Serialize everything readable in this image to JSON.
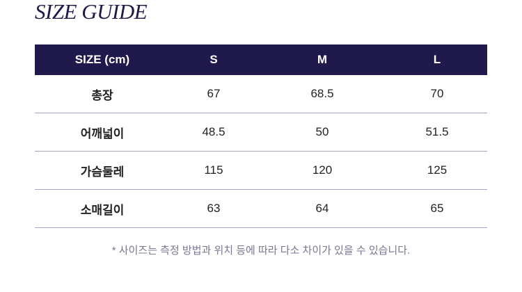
{
  "title": "SIZE GUIDE",
  "table": {
    "headers": [
      "SIZE (cm)",
      "S",
      "M",
      "L"
    ],
    "rows": [
      {
        "label": "총장",
        "values": [
          "67",
          "68.5",
          "70"
        ]
      },
      {
        "label": "어깨넓이",
        "values": [
          "48.5",
          "50",
          "51.5"
        ]
      },
      {
        "label": "가슴둘레",
        "values": [
          "115",
          "120",
          "125"
        ]
      },
      {
        "label": "소매길이",
        "values": [
          "63",
          "64",
          "65"
        ]
      }
    ]
  },
  "note": "* 사이즈는 측정 방법과 위치 등에 따라 다소 차이가 있을 수 있습니다.",
  "colors": {
    "header_bg": "#1f1a4b",
    "divider": "#a9a3c4",
    "title": "#1e1a4a"
  }
}
